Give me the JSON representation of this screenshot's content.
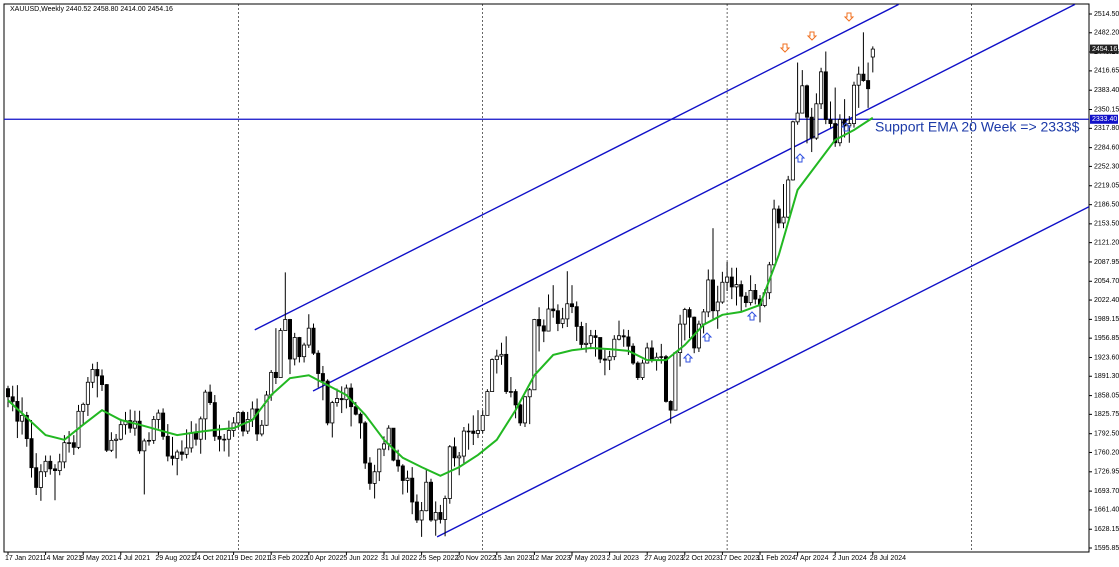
{
  "chart_data": {
    "type": "candlestick",
    "header": "XAUUSD,Weekly  2440.52 2458.80 2414.00 2454.16",
    "annotation": "Support EMA 20 Week => 2333$",
    "xlim": [
      -0.85,
      230
    ],
    "ylim": [
      1588.97,
      2531.7
    ],
    "xticks": [
      {
        "value": 0,
        "label": "17 Jan 2021"
      },
      {
        "value": 8,
        "label": "14 Mar 2021"
      },
      {
        "value": 16,
        "label": "9 May 2021"
      },
      {
        "value": 24,
        "label": "4 Jul 2021"
      },
      {
        "value": 32,
        "label": "29 Aug 2021"
      },
      {
        "value": 40,
        "label": "24 Oct 2021"
      },
      {
        "value": 48,
        "label": "19 Dec 2021"
      },
      {
        "value": 56,
        "label": "13 Feb 2022"
      },
      {
        "value": 64,
        "label": "10 Apr 2022"
      },
      {
        "value": 72,
        "label": "5 Jun 2022"
      },
      {
        "value": 80,
        "label": "31 Jul 2022"
      },
      {
        "value": 88,
        "label": "25 Sep 2022"
      },
      {
        "value": 96,
        "label": "20 Nov 2022"
      },
      {
        "value": 104,
        "label": "15 Jan 2023"
      },
      {
        "value": 112,
        "label": "12 Mar 2023"
      },
      {
        "value": 120,
        "label": "7 May 2023"
      },
      {
        "value": 128,
        "label": "2 Jul 2023"
      },
      {
        "value": 136,
        "label": "27 Aug 2023"
      },
      {
        "value": 144,
        "label": "22 Oct 2023"
      },
      {
        "value": 152,
        "label": "17 Dec 2023"
      },
      {
        "value": 160,
        "label": "11 Feb 2024"
      },
      {
        "value": 168,
        "label": "7 Apr 2024"
      },
      {
        "value": 176,
        "label": "2 Jun 2024"
      },
      {
        "value": 184,
        "label": "28 Jul 2024"
      }
    ],
    "xgrid": [
      49,
      101,
      153,
      205
    ],
    "yticks": [
      {
        "value": 2514.5,
        "label": "2514.50"
      },
      {
        "value": 2482.2,
        "label": "2482.20"
      },
      {
        "value": 2449.15,
        "label": "2449.15"
      },
      {
        "value": 2416.65,
        "label": "2416.65"
      },
      {
        "value": 2383.4,
        "label": "2383.40"
      },
      {
        "value": 2350.15,
        "label": "2350.15"
      },
      {
        "value": 2317.8,
        "label": "2317.80"
      },
      {
        "value": 2284.6,
        "label": "2284.60"
      },
      {
        "value": 2252.3,
        "label": "2252.30"
      },
      {
        "value": 2219.05,
        "label": "2219.05"
      },
      {
        "value": 2186.5,
        "label": "2186.50"
      },
      {
        "value": 2153.5,
        "label": "2153.50"
      },
      {
        "value": 2121.2,
        "label": "2121.20"
      },
      {
        "value": 2087.95,
        "label": "2087.95"
      },
      {
        "value": 2054.7,
        "label": "2054.70"
      },
      {
        "value": 2022.4,
        "label": "2022.40"
      },
      {
        "value": 1989.15,
        "label": "1989.15"
      },
      {
        "value": 1956.85,
        "label": "1956.85"
      },
      {
        "value": 1923.6,
        "label": "1923.60"
      },
      {
        "value": 1891.3,
        "label": "1891.30"
      },
      {
        "value": 1858.05,
        "label": "1858.05"
      },
      {
        "value": 1825.75,
        "label": "1825.75"
      },
      {
        "value": 1792.5,
        "label": "1792.50"
      },
      {
        "value": 1760.2,
        "label": "1760.20"
      },
      {
        "value": 1726.95,
        "label": "1726.95"
      },
      {
        "value": 1693.7,
        "label": "1693.70"
      },
      {
        "value": 1661.4,
        "label": "1661.40"
      },
      {
        "value": 1628.15,
        "label": "1628.15"
      },
      {
        "value": 1595.85,
        "label": "1595.85"
      }
    ],
    "open": [
      1870,
      1856,
      1848,
      1814,
      1824,
      1784,
      1734,
      1700,
      1727,
      1745,
      1732,
      1729,
      1744,
      1777,
      1777,
      1769,
      1831,
      1843,
      1881,
      1903,
      1892,
      1877,
      1764,
      1781,
      1783,
      1808,
      1815,
      1802,
      1814,
      1763,
      1780,
      1781,
      1817,
      1828,
      1788,
      1754,
      1750,
      1761,
      1757,
      1768,
      1793,
      1783,
      1818,
      1864,
      1846,
      1788,
      1783,
      1783,
      1798,
      1811,
      1829,
      1797,
      1817,
      1835,
      1792,
      1807,
      1859,
      1898,
      1889,
      1970,
      1989,
      1921,
      1958,
      1925,
      1945,
      1974,
      1931,
      1896,
      1883,
      1811,
      1846,
      1853,
      1851,
      1871,
      1839,
      1826,
      1811,
      1742,
      1707,
      1727,
      1766,
      1775,
      1802,
      1747,
      1737,
      1712,
      1716,
      1675,
      1644,
      1660,
      1709,
      1644,
      1657,
      1645,
      1681,
      1770,
      1751,
      1754,
      1797,
      1797,
      1793,
      1798,
      1824,
      1865,
      1920,
      1926,
      1929,
      1865,
      1865,
      1842,
      1811,
      1856,
      1868,
      1989,
      1978,
      1969,
      2007,
      2004,
      1982,
      1990,
      2016,
      2011,
      1977,
      1946,
      1948,
      1961,
      1958,
      1921,
      1919,
      1925,
      1955,
      1961,
      1959,
      1943,
      1914,
      1889,
      1914,
      1940,
      1919,
      1924,
      1925,
      1848,
      1833,
      1932,
      1981,
      2006,
      1993,
      1940,
      1981,
      2002,
      2057,
      2004,
      2019,
      2053,
      2062,
      2045,
      2049,
      2029,
      2018,
      2039,
      2024,
      2013,
      2035,
      2083,
      2179,
      2155,
      2165,
      2229,
      2329,
      2344,
      2391,
      2337,
      2301,
      2360,
      2415,
      2333,
      2326,
      2293,
      2333,
      2322,
      2326,
      2392,
      2411,
      2400,
      2440.52
    ],
    "high": [
      1875,
      1875,
      1876,
      1855,
      1830,
      1816,
      1759,
      1740,
      1755,
      1755,
      1740,
      1758,
      1790,
      1797,
      1790,
      1842,
      1846,
      1890,
      1913,
      1916,
      1903,
      1878,
      1795,
      1792,
      1818,
      1830,
      1834,
      1832,
      1832,
      1784,
      1795,
      1823,
      1834,
      1836,
      1809,
      1787,
      1765,
      1781,
      1800,
      1814,
      1810,
      1822,
      1868,
      1877,
      1859,
      1808,
      1792,
      1815,
      1821,
      1831,
      1832,
      1830,
      1848,
      1853,
      1816,
      1866,
      1902,
      1974,
      1974,
      2070,
      1990,
      1966,
      1959,
      1949,
      1998,
      1982,
      1936,
      1909,
      1886,
      1849,
      1870,
      1874,
      1877,
      1879,
      1847,
      1829,
      1814,
      1752,
      1739,
      1767,
      1788,
      1807,
      1802,
      1765,
      1740,
      1729,
      1735,
      1688,
      1675,
      1730,
      1715,
      1676,
      1670,
      1686,
      1773,
      1786,
      1761,
      1804,
      1810,
      1824,
      1833,
      1833,
      1869,
      1922,
      1937,
      1949,
      1960,
      1890,
      1869,
      1844,
      1857,
      1871,
      1990,
      2010,
      1989,
      2032,
      2048,
      2015,
      2009,
      2072,
      2048,
      2020,
      1985,
      1983,
      1971,
      1971,
      1958,
      1937,
      1935,
      1962,
      1987,
      1972,
      1971,
      1948,
      1917,
      1920,
      1949,
      1953,
      1932,
      1947,
      1928,
      1850,
      1934,
      1997,
      2009,
      2010,
      1994,
      1987,
      2007,
      2075,
      2146,
      2047,
      2071,
      2088,
      2078,
      2078,
      2056,
      2036,
      2065,
      2050,
      2031,
      2041,
      2088,
      2195,
      2185,
      2222,
      2236,
      2331,
      2431,
      2418,
      2393,
      2353,
      2378,
      2422,
      2450,
      2364,
      2388,
      2342,
      2368,
      2339,
      2398,
      2424,
      2483,
      2431,
      2458.8
    ],
    "low": [
      1838,
      1831,
      1785,
      1791,
      1770,
      1717,
      1687,
      1677,
      1718,
      1722,
      1678,
      1721,
      1733,
      1760,
      1756,
      1766,
      1808,
      1823,
      1871,
      1855,
      1866,
      1761,
      1761,
      1750,
      1781,
      1791,
      1794,
      1789,
      1758,
      1688,
      1772,
      1775,
      1801,
      1782,
      1745,
      1738,
      1721,
      1746,
      1750,
      1760,
      1772,
      1758,
      1782,
      1842,
      1780,
      1762,
      1762,
      1753,
      1787,
      1802,
      1788,
      1792,
      1804,
      1780,
      1788,
      1806,
      1849,
      1878,
      1889,
      1970,
      1895,
      1910,
      1915,
      1915,
      1940,
      1928,
      1872,
      1850,
      1807,
      1786,
      1839,
      1828,
      1836,
      1805,
      1824,
      1784,
      1732,
      1696,
      1681,
      1711,
      1754,
      1764,
      1745,
      1727,
      1688,
      1691,
      1654,
      1639,
      1615,
      1659,
      1641,
      1617,
      1638,
      1616,
      1672,
      1736,
      1721,
      1741,
      1765,
      1773,
      1785,
      1793,
      1824,
      1867,
      1896,
      1911,
      1861,
      1855,
      1819,
      1806,
      1804,
      1809,
      1868,
      1934,
      1950,
      1969,
      1992,
      1969,
      1974,
      1976,
      2000,
      1952,
      1937,
      1932,
      1938,
      1925,
      1914,
      1893,
      1902,
      1919,
      1953,
      1942,
      1928,
      1911,
      1885,
      1885,
      1913,
      1915,
      1901,
      1913,
      1846,
      1810,
      1833,
      1908,
      1953,
      1957,
      1931,
      1933,
      1965,
      1993,
      1990,
      1973,
      2016,
      2038,
      2024,
      2013,
      2001,
      2010,
      2013,
      2015,
      1984,
      2010,
      2024,
      2082,
      2146,
      2146,
      2163,
      2228,
      2324,
      2344,
      2292,
      2277,
      2298,
      2351,
      2325,
      2319,
      2286,
      2287,
      2302,
      2293,
      2319,
      2353,
      2398,
      2353,
      2414
    ],
    "close": [
      1856,
      1848,
      1814,
      1824,
      1784,
      1734,
      1700,
      1727,
      1745,
      1732,
      1729,
      1744,
      1777,
      1777,
      1769,
      1831,
      1843,
      1881,
      1903,
      1892,
      1877,
      1764,
      1781,
      1783,
      1808,
      1815,
      1802,
      1814,
      1763,
      1780,
      1781,
      1817,
      1828,
      1788,
      1754,
      1750,
      1761,
      1757,
      1768,
      1793,
      1783,
      1818,
      1864,
      1846,
      1788,
      1783,
      1783,
      1798,
      1811,
      1829,
      1797,
      1817,
      1835,
      1792,
      1807,
      1859,
      1898,
      1889,
      1970,
      1989,
      1921,
      1958,
      1925,
      1945,
      1974,
      1931,
      1896,
      1883,
      1811,
      1846,
      1853,
      1851,
      1871,
      1839,
      1826,
      1811,
      1742,
      1707,
      1727,
      1766,
      1775,
      1802,
      1747,
      1737,
      1712,
      1716,
      1675,
      1644,
      1660,
      1709,
      1644,
      1657,
      1645,
      1681,
      1770,
      1751,
      1754,
      1797,
      1797,
      1793,
      1798,
      1824,
      1865,
      1920,
      1926,
      1929,
      1865,
      1865,
      1842,
      1811,
      1856,
      1868,
      1989,
      1978,
      1969,
      2007,
      2004,
      1982,
      1990,
      2016,
      2011,
      1977,
      1946,
      1948,
      1961,
      1958,
      1921,
      1919,
      1925,
      1955,
      1961,
      1959,
      1943,
      1914,
      1889,
      1914,
      1940,
      1919,
      1924,
      1925,
      1848,
      1833,
      1932,
      1981,
      2006,
      1993,
      1940,
      1981,
      2002,
      2057,
      2004,
      2019,
      2053,
      2062,
      2045,
      2049,
      2029,
      2018,
      2039,
      2024,
      2013,
      2035,
      2083,
      2179,
      2155,
      2165,
      2229,
      2329,
      2344,
      2391,
      2337,
      2301,
      2360,
      2415,
      2333,
      2326,
      2293,
      2333,
      2322,
      2326,
      2392,
      2411,
      2400,
      2386,
      2454.16
    ],
    "ema": {
      "color": "#22b822",
      "x": [
        0,
        8,
        12,
        16,
        20,
        24,
        28,
        32,
        36,
        40,
        44,
        48,
        52,
        56,
        60,
        64,
        68,
        72,
        76,
        80,
        84,
        88,
        92,
        96,
        100,
        104,
        108,
        112,
        116,
        120,
        124,
        128,
        132,
        136,
        140,
        144,
        148,
        152,
        156,
        160,
        164,
        168,
        172,
        176,
        180,
        184
      ],
      "values": [
        1850,
        1790,
        1782,
        1808,
        1833,
        1816,
        1808,
        1799,
        1790,
        1795,
        1799,
        1802,
        1816,
        1859,
        1888,
        1893,
        1876,
        1859,
        1825,
        1782,
        1751,
        1735,
        1720,
        1735,
        1756,
        1782,
        1833,
        1893,
        1928,
        1936,
        1940,
        1938,
        1935,
        1919,
        1919,
        1945,
        1980,
        1997,
        2002,
        2014,
        2100,
        2212,
        2255,
        2298,
        2315,
        2336
      ]
    },
    "line_color": "#1010c8",
    "trend_lines": [
      {
        "x": [
          52.5,
          189.5
        ],
        "y": [
          1971,
          2531
        ]
      },
      {
        "x": [
          64.9,
          227
        ],
        "y": [
          1866,
          2531
        ]
      },
      {
        "x": [
          91.3,
          230
        ],
        "y": [
          1615,
          2183
        ]
      }
    ],
    "support_level": {
      "value": 2333.4,
      "label": "2333.40"
    },
    "last_price": 2454.16
  }
}
